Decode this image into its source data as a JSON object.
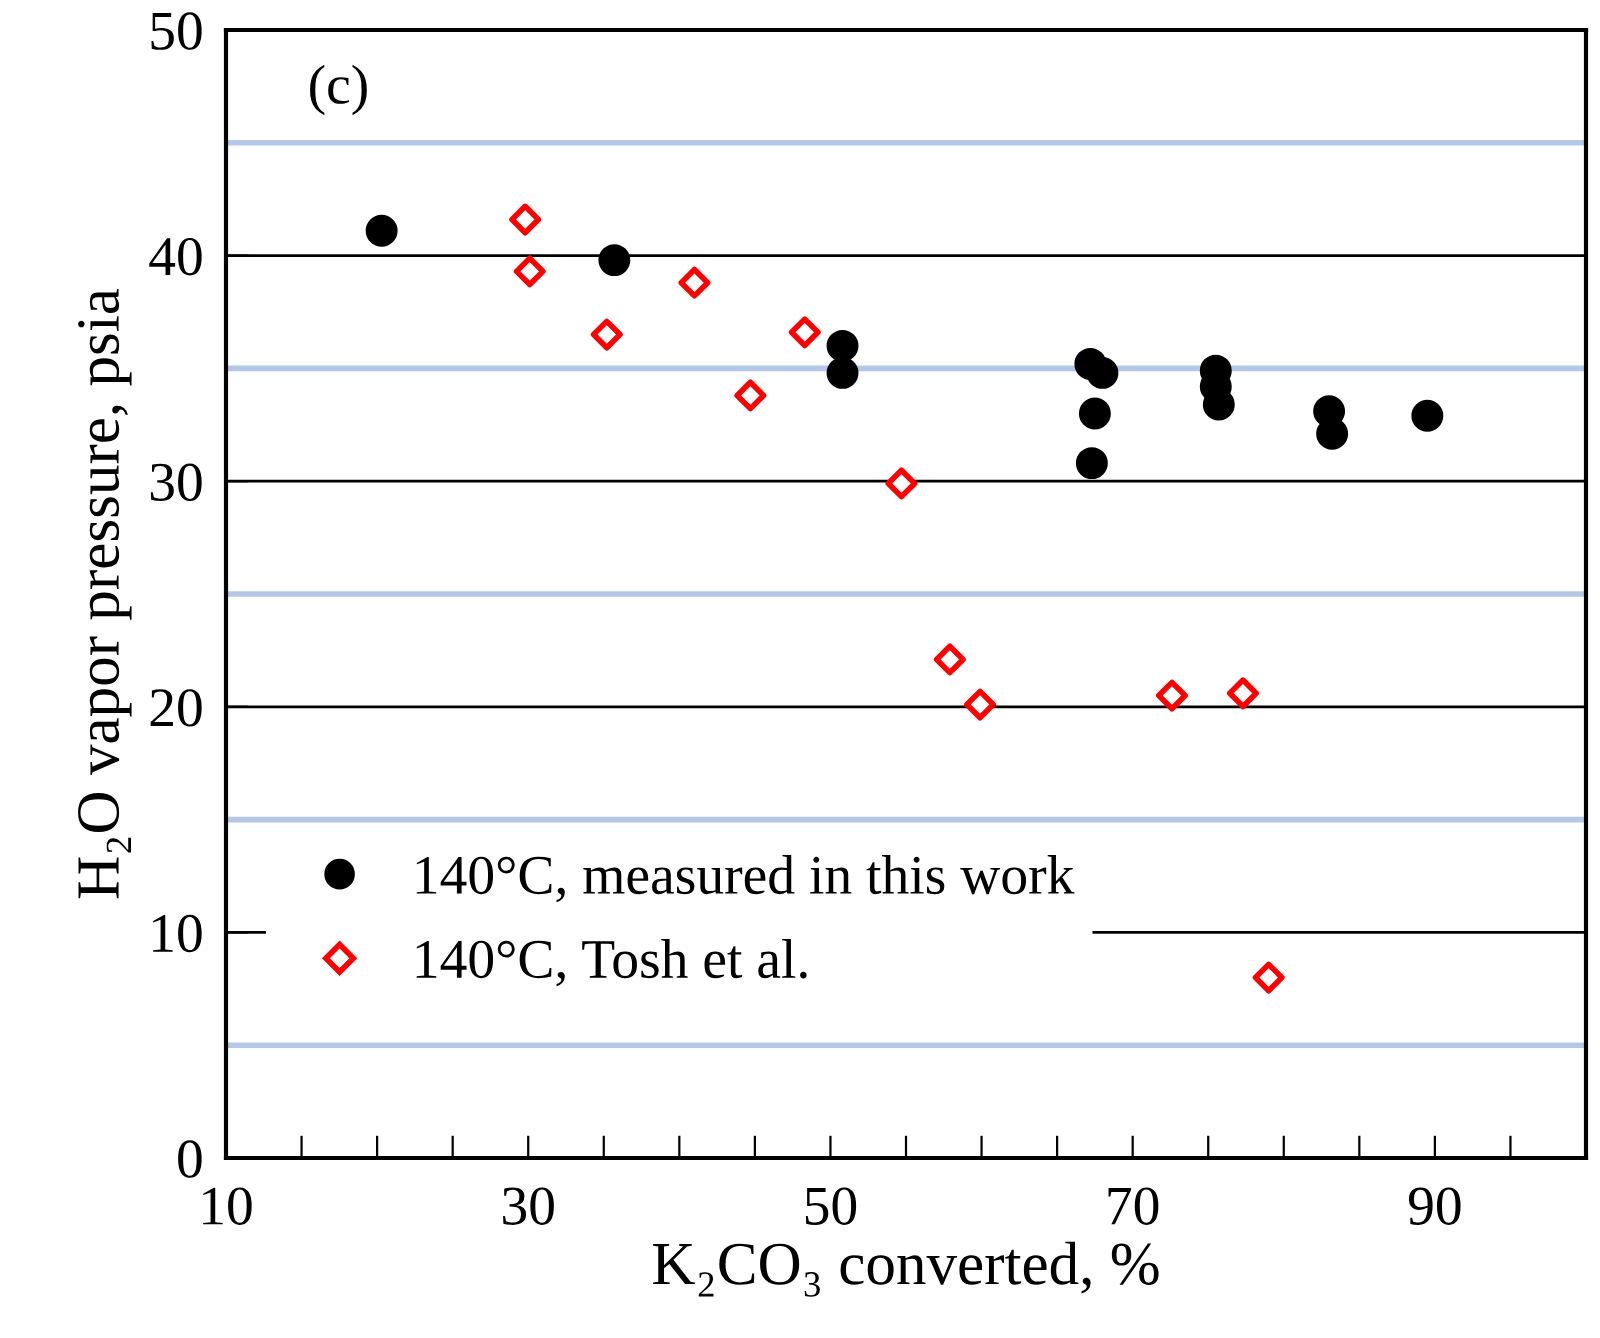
{
  "chart_data": {
    "type": "scatter",
    "xlabel": "K₂CO₃ converted, %",
    "ylabel": "H₂O vapor pressure, psia",
    "annotations": [
      "(c)"
    ],
    "xlim": [
      10,
      100
    ],
    "ylim": [
      0,
      50
    ],
    "xticks": [
      10,
      {
        "value": 15,
        "label": null
      },
      {
        "value": 20,
        "label": null
      },
      {
        "value": 25,
        "label": null
      },
      30,
      {
        "value": 35,
        "label": null
      },
      {
        "value": 40,
        "label": null
      },
      {
        "value": 45,
        "label": null
      },
      50,
      {
        "value": 55,
        "label": null
      },
      {
        "value": 60,
        "label": null
      },
      {
        "value": 65,
        "label": null
      },
      70,
      {
        "value": 75,
        "label": null
      },
      {
        "value": 80,
        "label": null
      },
      {
        "value": 85,
        "label": null
      },
      90,
      {
        "value": 95,
        "label": null
      }
    ],
    "yticks": [
      0,
      10,
      20,
      30,
      40,
      50
    ],
    "grid": "y",
    "legend": "bottom left",
    "ref_lines": [
      {
        "axis": "y",
        "value": 5,
        "color": "#b4c7e7"
      },
      {
        "axis": "y",
        "value": 15,
        "color": "#b4c7e7"
      },
      {
        "axis": "y",
        "value": 25,
        "color": "#b4c7e7"
      },
      {
        "axis": "y",
        "value": 35,
        "color": "#b4c7e7"
      },
      {
        "axis": "y",
        "value": 45,
        "color": "#b4c7e7"
      }
    ],
    "series": [
      {
        "name": "140°C, measured in this work",
        "color": "#000000",
        "marker": "circle",
        "x": [
          20.3,
          35.7,
          50.8,
          50.8,
          67.2,
          68.0,
          67.5,
          67.3,
          75.5,
          75.5,
          75.7,
          83.0,
          83.2,
          89.5
        ],
        "values": [
          41.1,
          39.8,
          36.0,
          34.8,
          35.2,
          34.8,
          33.0,
          30.8,
          34.9,
          34.2,
          33.4,
          33.1,
          32.1,
          32.9
        ]
      },
      {
        "name": "140°C, Tosh et al.",
        "color": "#ff0000",
        "marker": "diamond",
        "x": [
          29.8,
          30.1,
          35.2,
          41.0,
          48.3,
          44.7,
          54.7,
          57.9,
          59.9,
          72.6,
          77.3,
          79.0
        ],
        "values": [
          41.6,
          39.3,
          36.5,
          38.8,
          36.6,
          33.8,
          29.9,
          22.1,
          20.1,
          20.5,
          20.6,
          8.0
        ]
      }
    ]
  }
}
